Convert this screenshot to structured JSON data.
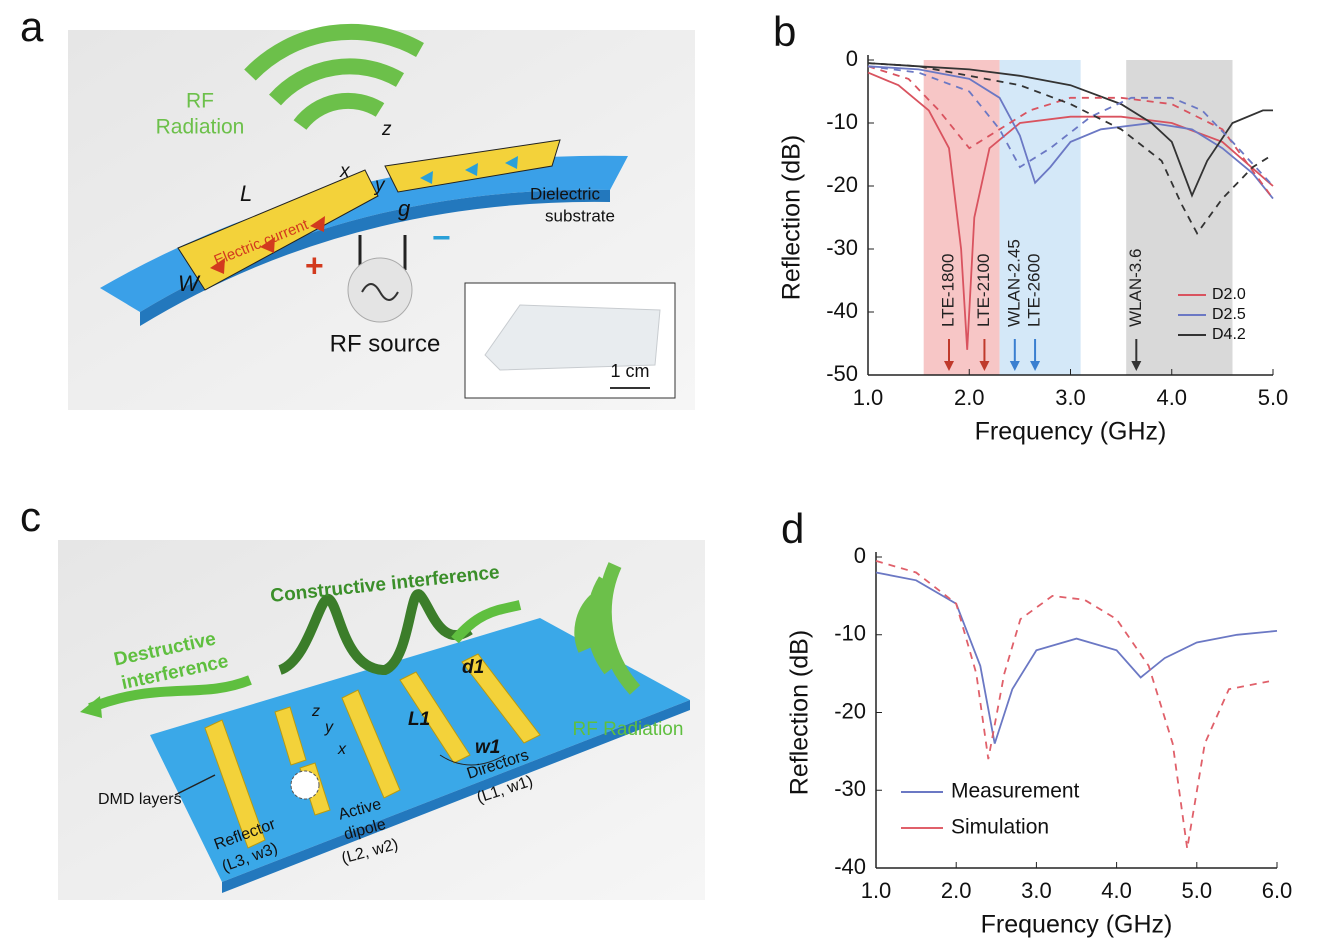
{
  "chart_data": [
    {
      "type": "line",
      "panel_label": "b",
      "xlabel": "Frequency (GHz)",
      "ylabel": "Reflection (dB)",
      "xlim": [
        1,
        5
      ],
      "ylim": [
        -50,
        0
      ],
      "xticks": [
        {
          "value": 1,
          "label": "1.0"
        },
        {
          "value": 2,
          "label": "2.0"
        },
        {
          "value": 3,
          "label": "3.0"
        },
        {
          "value": 4,
          "label": "4.0"
        },
        {
          "value": 5,
          "label": "5.0"
        }
      ],
      "yticks": [
        0,
        -10,
        -20,
        -30,
        -40,
        -50
      ],
      "bands": [
        {
          "range": [
            1.55,
            2.3
          ],
          "color": "#f7c6c6"
        },
        {
          "range": [
            2.3,
            3.1
          ],
          "color": "#d4e8f8"
        },
        {
          "range": [
            3.55,
            4.6
          ],
          "color": "#d9d9d9"
        }
      ],
      "annotations": [
        {
          "x": 1.8,
          "text": "LTE-1800",
          "color": "#c0392b"
        },
        {
          "x": 2.15,
          "text": "LTE-2100",
          "color": "#c0392b"
        },
        {
          "x": 2.45,
          "text": "WLAN-2.45",
          "color": "#3a7fd0"
        },
        {
          "x": 2.65,
          "text": "LTE-2600",
          "color": "#3a7fd0"
        },
        {
          "x": 3.65,
          "text": "WLAN-3.6",
          "color": "#333333"
        }
      ],
      "legend": "lower right",
      "series": [
        {
          "name": "D2.0",
          "color": "#d9535f",
          "x": [
            1.0,
            1.3,
            1.6,
            1.8,
            1.92,
            1.98,
            2.05,
            2.2,
            2.5,
            3.0,
            3.5,
            4.0,
            4.5,
            5.0
          ],
          "values": [
            -2,
            -4,
            -8,
            -14,
            -30,
            -46,
            -25,
            -14,
            -10,
            -9,
            -9,
            -10,
            -13,
            -20
          ]
        },
        {
          "name": "D2.5",
          "color": "#6b78c4",
          "x": [
            1.0,
            1.5,
            2.0,
            2.3,
            2.5,
            2.65,
            2.8,
            3.0,
            3.3,
            3.8,
            4.2,
            4.5,
            4.8,
            5.0
          ],
          "values": [
            -1,
            -1.5,
            -3,
            -6,
            -12,
            -19.5,
            -17,
            -13,
            -11,
            -10,
            -11,
            -14,
            -18,
            -22
          ]
        },
        {
          "name": "D4.2",
          "color": "#333333",
          "x": [
            1.0,
            1.5,
            2.0,
            2.5,
            3.0,
            3.5,
            3.8,
            4.0,
            4.2,
            4.35,
            4.6,
            4.9,
            5.0
          ],
          "values": [
            -0.5,
            -1,
            -1.5,
            -2.5,
            -4,
            -7,
            -10,
            -13,
            -21.5,
            -16,
            -10,
            -8,
            -8
          ]
        },
        {
          "color": "#d9535f",
          "dash": true,
          "x": [
            1.0,
            1.4,
            1.7,
            2.0,
            2.3,
            2.6,
            3.0,
            3.5,
            4.0,
            4.5,
            5.0
          ],
          "values": [
            -1,
            -3,
            -8,
            -14,
            -11,
            -8,
            -6,
            -6,
            -7,
            -11,
            -22
          ]
        },
        {
          "color": "#6b78c4",
          "dash": true,
          "x": [
            1.0,
            1.5,
            2.0,
            2.3,
            2.5,
            2.8,
            3.2,
            3.6,
            4.0,
            4.3,
            4.6,
            5.0
          ],
          "values": [
            -1,
            -2,
            -5,
            -11,
            -17,
            -14,
            -9,
            -6,
            -6,
            -8,
            -13,
            -20
          ]
        },
        {
          "color": "#333333",
          "dash": true,
          "x": [
            1.0,
            1.5,
            2.0,
            2.5,
            3.0,
            3.5,
            3.9,
            4.1,
            4.25,
            4.5,
            4.8,
            5.0
          ],
          "values": [
            -0.5,
            -1,
            -2.5,
            -4,
            -7,
            -11,
            -16,
            -23,
            -27.5,
            -22,
            -17,
            -15
          ]
        }
      ]
    },
    {
      "type": "line",
      "panel_label": "d",
      "xlabel": "Frequency (GHz)",
      "ylabel": "Reflection (dB)",
      "xlim": [
        1,
        6
      ],
      "ylim": [
        -40,
        0
      ],
      "xticks": [
        {
          "value": 1,
          "label": "1.0"
        },
        {
          "value": 2,
          "label": "2.0"
        },
        {
          "value": 3,
          "label": "3.0"
        },
        {
          "value": 4,
          "label": "4.0"
        },
        {
          "value": 5,
          "label": "5.0"
        },
        {
          "value": 6,
          "label": "6.0"
        }
      ],
      "yticks": [
        0,
        -10,
        -20,
        -30,
        -40
      ],
      "legend": "lower left",
      "series": [
        {
          "name": "Measurement",
          "color": "#6b78c4",
          "x": [
            1.0,
            1.5,
            2.0,
            2.3,
            2.48,
            2.7,
            3.0,
            3.5,
            4.0,
            4.3,
            4.6,
            5.0,
            5.5,
            6.0
          ],
          "values": [
            -2,
            -3,
            -6,
            -14,
            -24,
            -17,
            -12,
            -10.5,
            -12,
            -15.5,
            -13,
            -11,
            -10,
            -9.5
          ]
        },
        {
          "name": "Simulation",
          "color": "#e0606a",
          "dash": true,
          "x": [
            1.0,
            1.5,
            2.0,
            2.25,
            2.4,
            2.6,
            2.8,
            3.2,
            3.6,
            4.0,
            4.4,
            4.7,
            4.88,
            5.1,
            5.4,
            5.9
          ],
          "values": [
            -0.5,
            -2,
            -6,
            -15,
            -26,
            -15,
            -8,
            -5,
            -5.5,
            -8,
            -14,
            -24,
            -37.5,
            -24,
            -17,
            -16
          ]
        }
      ]
    }
  ],
  "panel_a": {
    "label": "a",
    "rf_radiation": [
      "RF",
      "Radiation"
    ],
    "length": "L",
    "width": "W",
    "gap": "g",
    "axis_x": "x",
    "axis_y": "y",
    "axis_z": "z",
    "current": "Electric current",
    "substrate": [
      "Dielectric",
      "substrate"
    ],
    "plus": "+",
    "minus": "−",
    "source": "RF source",
    "scale": "1 cm"
  },
  "panel_c": {
    "label": "c",
    "constructive": "Constructive interference",
    "destructive": [
      "Destructive",
      "interference"
    ],
    "rf_radiation": "RF Radiation",
    "dmd": "DMD layers",
    "reflector": [
      "Reflector",
      "(L3, w3)"
    ],
    "active": [
      "Active",
      "dipole",
      "(L2, w2)"
    ],
    "directors": [
      "Directors",
      "(L1, w1)"
    ],
    "d1": "d1",
    "l1": "L1",
    "w1": "w1",
    "axis_x": "x",
    "axis_y": "y",
    "axis_z": "z"
  }
}
